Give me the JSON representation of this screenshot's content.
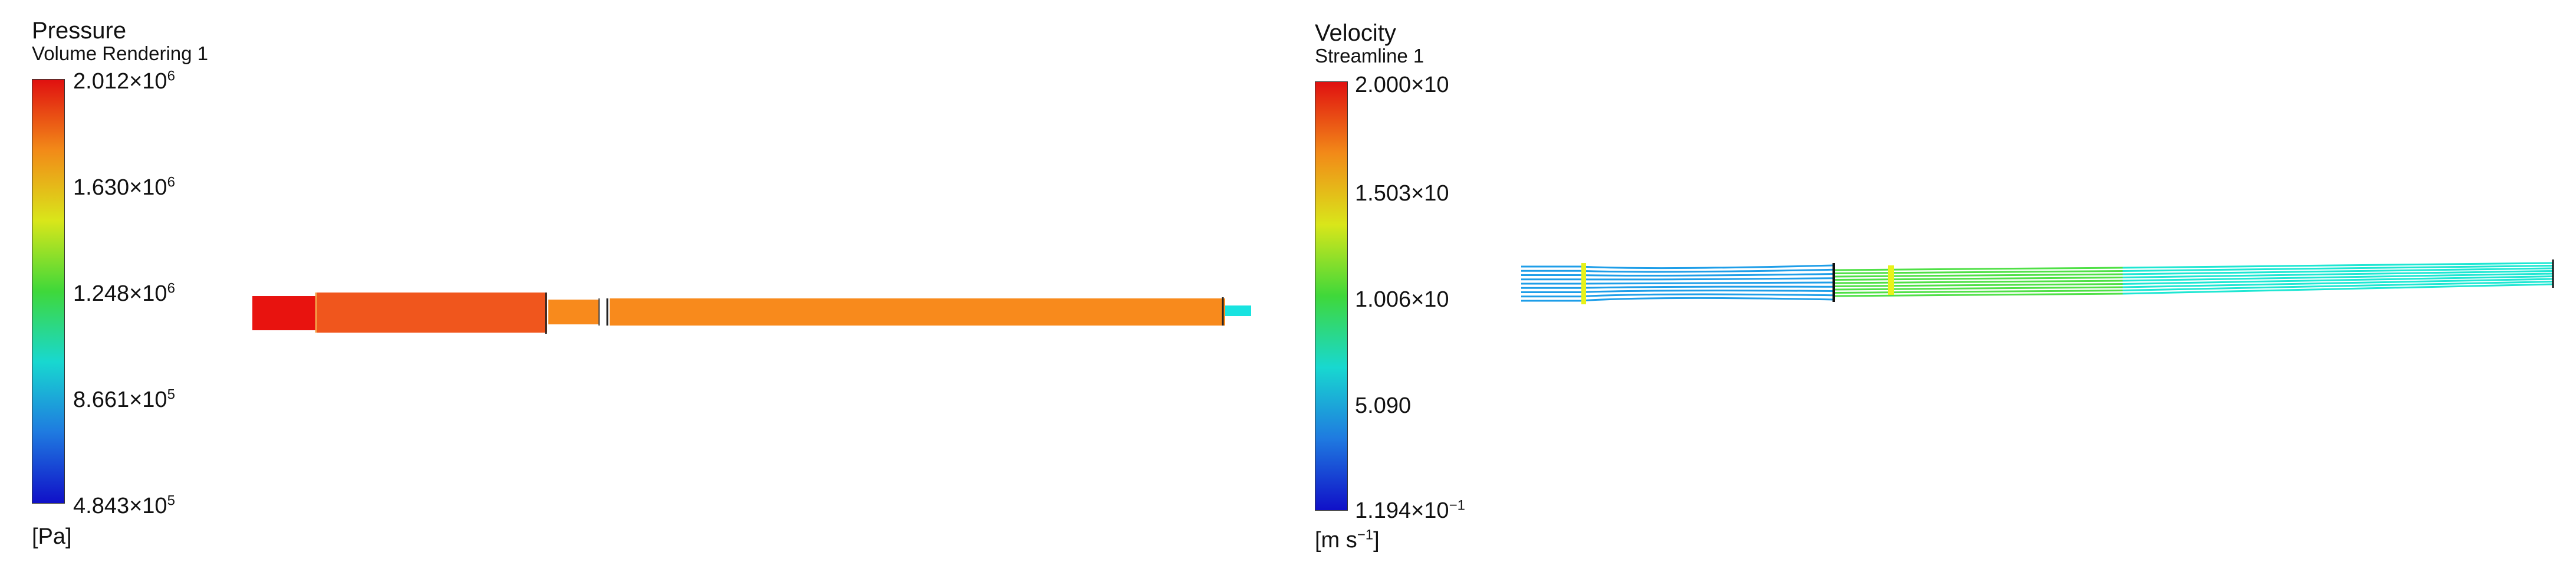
{
  "pressure": {
    "title": "Pressure",
    "subtitle": "Volume Rendering 1",
    "unit": "[Pa]",
    "ticks": [
      {
        "mant": "2.012",
        "exp": "6"
      },
      {
        "mant": "1.630",
        "exp": "6"
      },
      {
        "mant": "1.248",
        "exp": "6"
      },
      {
        "mant": "8.661",
        "exp": "5"
      },
      {
        "mant": "4.843",
        "exp": "5"
      }
    ],
    "colors": {
      "max": "#e8130f",
      "body": "#f0561d",
      "tube": "#f88a1c",
      "tip": "#18e3e0"
    }
  },
  "velocity": {
    "title": "Velocity",
    "subtitle": "Streamline 1",
    "unit_base": "[m s",
    "unit_exp": "−1",
    "unit_close": "]",
    "ticks": [
      {
        "mant": "2.000",
        "suffix": "×10"
      },
      {
        "mant": "1.503",
        "suffix": "×10"
      },
      {
        "mant": "1.006",
        "suffix": "×10"
      },
      {
        "mant": "5.090",
        "suffix": ""
      },
      {
        "mant": "1.194",
        "suffix": "×10",
        "exp": "−1"
      }
    ],
    "colors": {
      "inlet": "#1e9ee8",
      "throat": "#e8f21a",
      "mid": "#4fe046",
      "outlet": "#1ee6d2"
    }
  },
  "colormap": [
    "#e01010",
    "#f28a18",
    "#d9e61a",
    "#3fd83a",
    "#18d8d0",
    "#1f7ae0",
    "#1010c8"
  ]
}
